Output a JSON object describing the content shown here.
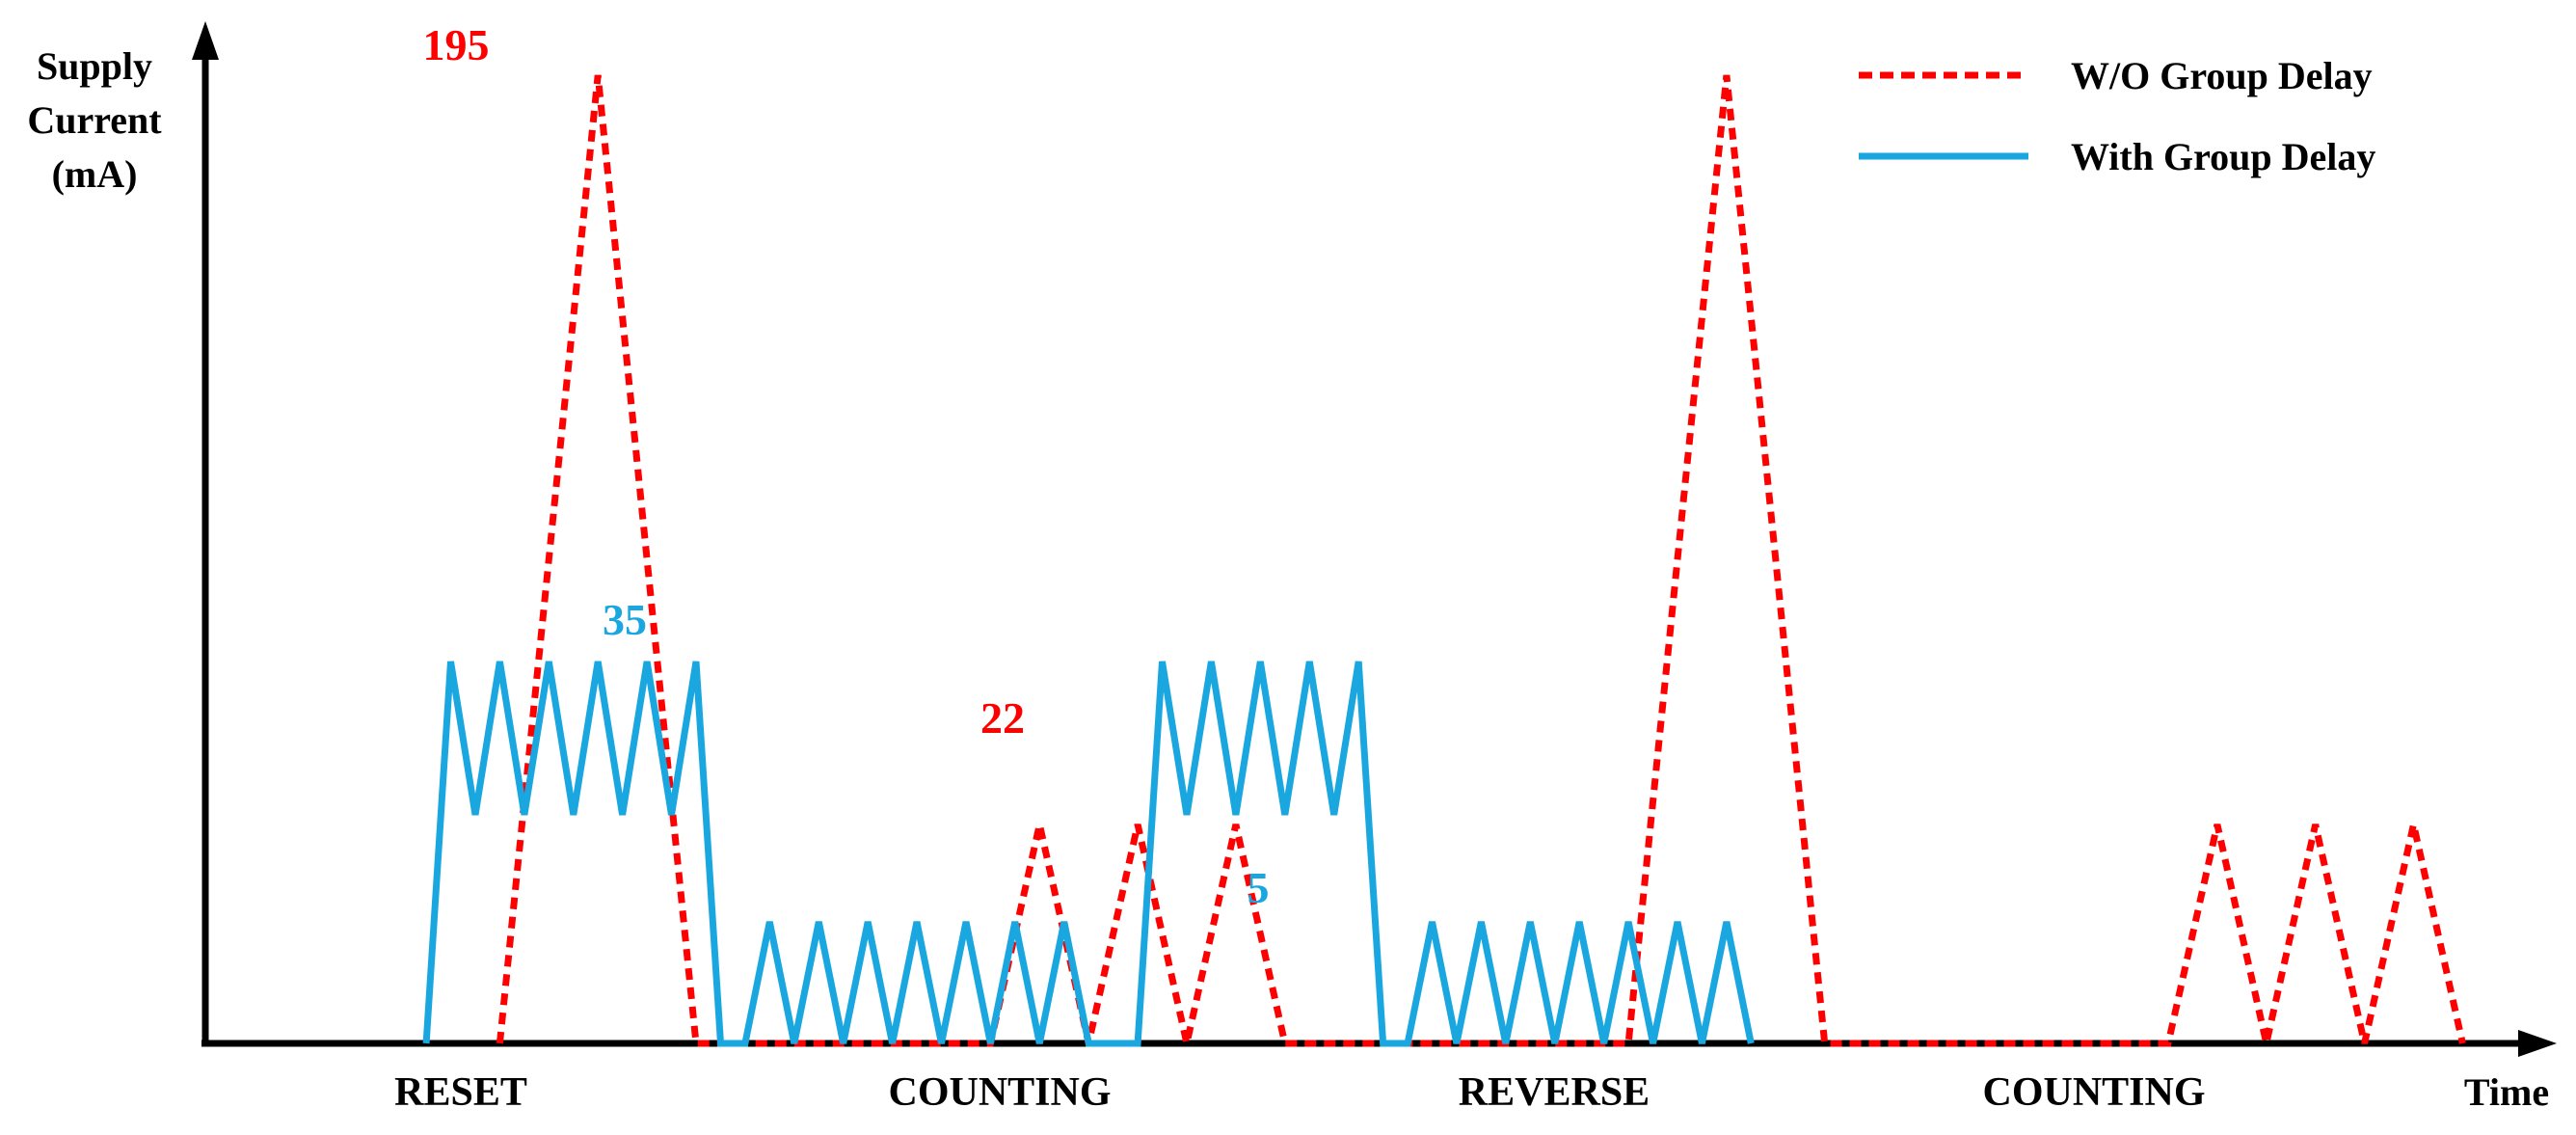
{
  "chart_data": {
    "type": "line",
    "title": "",
    "ylabel_lines": [
      "Supply",
      "Current",
      "(mA)"
    ],
    "xlabel": "Time",
    "phases": [
      "RESET",
      "COUNTING",
      "REVERSE",
      "COUNTING"
    ],
    "legend": {
      "position": "top-right",
      "entries": [
        {
          "label": "W/O Group Delay",
          "style": "dashed",
          "color": "#ff0000"
        },
        {
          "label": "With Group Delay",
          "style": "solid",
          "color": "#1aa7e0"
        }
      ]
    },
    "series": [
      {
        "name": "W/O Group Delay",
        "color": "#ff0000",
        "style": "dashed",
        "points": [
          [
            0.6,
            0
          ],
          [
            0.8,
            195
          ],
          [
            1.0,
            0
          ],
          [
            1.6,
            0
          ],
          [
            1.7,
            22
          ],
          [
            1.8,
            0
          ],
          [
            1.8,
            0
          ],
          [
            1.9,
            22
          ],
          [
            2.0,
            0
          ],
          [
            2.0,
            0
          ],
          [
            2.1,
            22
          ],
          [
            2.2,
            0
          ],
          [
            2.9,
            0
          ],
          [
            3.1,
            195
          ],
          [
            3.3,
            0
          ],
          [
            4.0,
            0
          ],
          [
            4.1,
            22
          ],
          [
            4.2,
            0
          ],
          [
            4.2,
            0
          ],
          [
            4.3,
            22
          ],
          [
            4.4,
            0
          ],
          [
            4.4,
            0
          ],
          [
            4.5,
            22
          ],
          [
            4.6,
            0
          ]
        ]
      },
      {
        "name": "With Group Delay",
        "color": "#1aa7e0",
        "style": "solid",
        "points": [
          [
            0.45,
            0
          ],
          [
            0.5,
            35
          ],
          [
            0.55,
            23
          ],
          [
            0.6,
            35
          ],
          [
            0.65,
            23
          ],
          [
            0.7,
            35
          ],
          [
            0.75,
            23
          ],
          [
            0.8,
            35
          ],
          [
            0.85,
            23
          ],
          [
            0.9,
            35
          ],
          [
            0.95,
            23
          ],
          [
            1.0,
            35
          ],
          [
            1.05,
            0
          ],
          [
            1.1,
            0
          ],
          [
            1.15,
            5
          ],
          [
            1.2,
            0
          ],
          [
            1.25,
            5
          ],
          [
            1.3,
            0
          ],
          [
            1.35,
            5
          ],
          [
            1.4,
            0
          ],
          [
            1.45,
            5
          ],
          [
            1.5,
            0
          ],
          [
            1.55,
            5
          ],
          [
            1.6,
            0
          ],
          [
            1.65,
            5
          ],
          [
            1.7,
            0
          ],
          [
            1.75,
            5
          ],
          [
            1.8,
            0
          ],
          [
            1.9,
            0
          ],
          [
            1.95,
            35
          ],
          [
            2.0,
            23
          ],
          [
            2.05,
            35
          ],
          [
            2.1,
            23
          ],
          [
            2.15,
            35
          ],
          [
            2.2,
            23
          ],
          [
            2.25,
            35
          ],
          [
            2.3,
            23
          ],
          [
            2.35,
            35
          ],
          [
            2.4,
            0
          ],
          [
            2.45,
            0
          ],
          [
            2.5,
            5
          ],
          [
            2.55,
            0
          ],
          [
            2.6,
            5
          ],
          [
            2.65,
            0
          ],
          [
            2.7,
            5
          ],
          [
            2.75,
            0
          ],
          [
            2.8,
            5
          ],
          [
            2.85,
            0
          ],
          [
            2.9,
            5
          ],
          [
            2.95,
            0
          ],
          [
            3.0,
            5
          ],
          [
            3.05,
            0
          ],
          [
            3.1,
            5
          ],
          [
            3.15,
            0
          ]
        ]
      }
    ],
    "annotations": [
      {
        "text": "195",
        "color": "#ff0000"
      },
      {
        "text": "35",
        "color": "#1aa7e0"
      },
      {
        "text": "22",
        "color": "#ff0000"
      },
      {
        "text": "5",
        "color": "#1aa7e0"
      }
    ],
    "grid": false,
    "axes_style": "arrows"
  }
}
